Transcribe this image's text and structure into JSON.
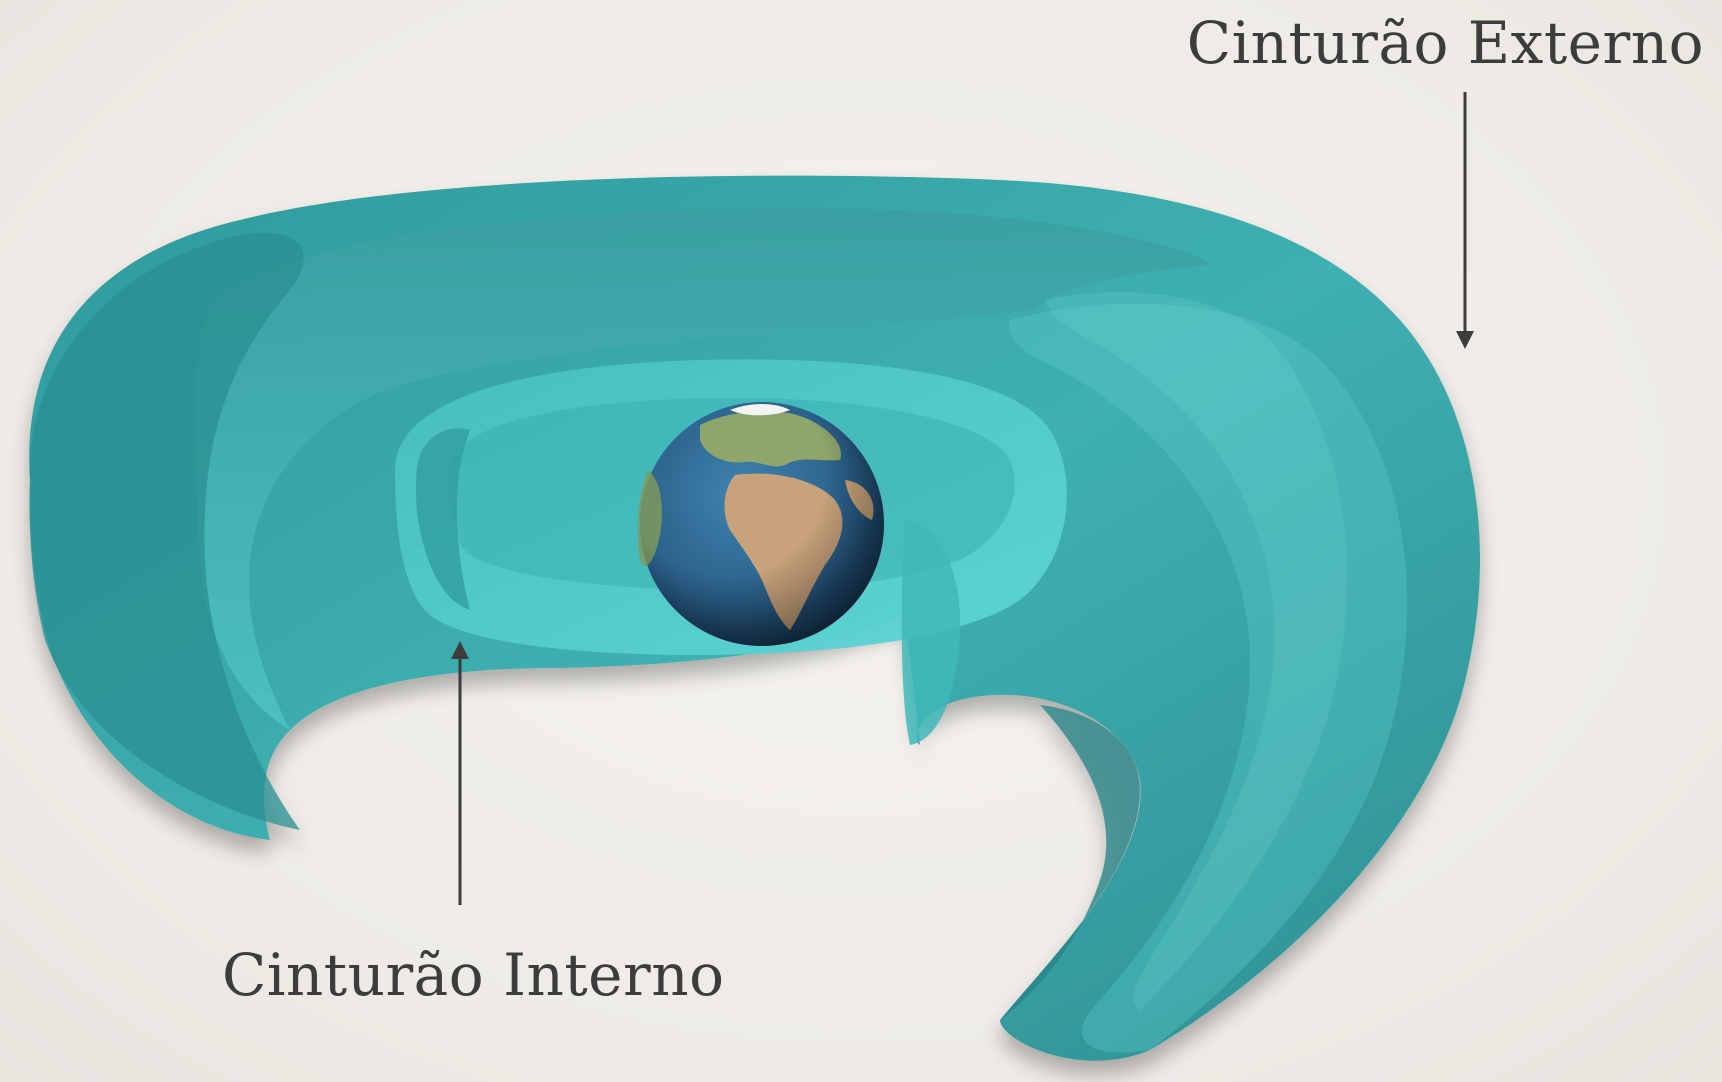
{
  "labels": {
    "outer_belt": "Cinturão Externo",
    "inner_belt": "Cinturão Interno"
  },
  "colors": {
    "background": "#efece7",
    "outer_belt": "#3aa6a6",
    "inner_belt": "#4fcfd0",
    "ocean": "#2f6f9a",
    "land": "#c9a77a",
    "arrow": "#3c3c3c",
    "text": "#3c3c3c"
  }
}
